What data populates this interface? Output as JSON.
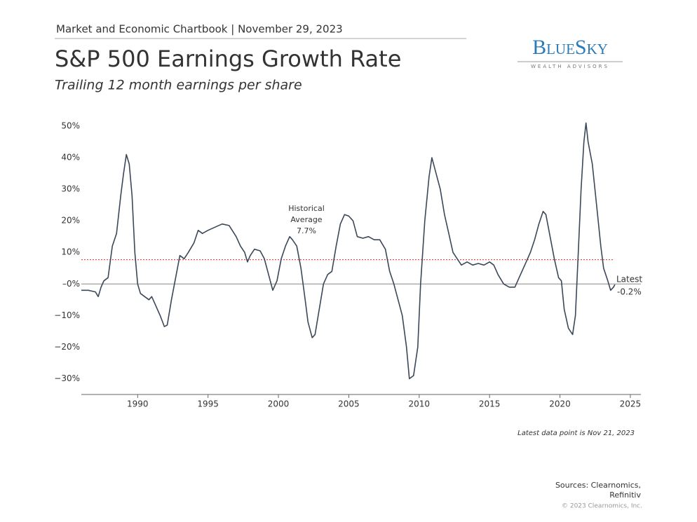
{
  "chart_data": {
    "type": "line",
    "header": "Market and Economic Chartbook | November 29, 2023",
    "title": "S&P 500 Earnings Growth Rate",
    "subtitle": "Trailing 12 month earnings per share",
    "logo": "BlueSky",
    "logo_tagline": "WEALTH ADVISORS",
    "note": "Latest data point is Nov 21, 2023",
    "source": [
      "Sources: Clearnomics,",
      "Refinitiv"
    ],
    "copyright": "© 2023 Clearnomics, Inc.",
    "color": "#3b4859",
    "xlim": [
      1986,
      2025.75
    ],
    "xticks": [
      1990,
      1995,
      2000,
      2005,
      2010,
      2015,
      2020,
      2025
    ],
    "ylim": [
      -35,
      52
    ],
    "yticks": [
      {
        "value": 50,
        "label": "50%"
      },
      {
        "value": 40,
        "label": "40%"
      },
      {
        "value": 30,
        "label": "30%"
      },
      {
        "value": 20,
        "label": "20%"
      },
      {
        "value": 10,
        "label": "10%"
      },
      {
        "value": 0,
        "label": "–0%"
      },
      {
        "value": -10,
        "label": "−10%"
      },
      {
        "value": -20,
        "label": "−20%"
      },
      {
        "value": -30,
        "label": "−30%"
      }
    ],
    "average": {
      "value": 7.7,
      "label": "7.7%",
      "text": [
        "Historical",
        "Average"
      ],
      "color": "#d9534f"
    },
    "latest": {
      "value": -0.2,
      "label": "-0.2%",
      "text": "Latest"
    },
    "x": [
      1986.0,
      1986.5,
      1987.0,
      1987.2,
      1987.4,
      1987.6,
      1987.9,
      1988.2,
      1988.5,
      1988.8,
      1989.0,
      1989.2,
      1989.4,
      1989.6,
      1989.8,
      1990.0,
      1990.2,
      1990.5,
      1990.8,
      1991.0,
      1991.3,
      1991.6,
      1991.9,
      1992.1,
      1992.4,
      1992.7,
      1993.0,
      1993.3,
      1993.6,
      1994.0,
      1994.3,
      1994.6,
      1995.0,
      1995.5,
      1996.0,
      1996.5,
      1997.0,
      1997.3,
      1997.6,
      1997.8,
      1998.0,
      1998.3,
      1998.7,
      1999.0,
      1999.3,
      1999.6,
      1999.9,
      2000.2,
      2000.5,
      2000.8,
      2001.0,
      2001.3,
      2001.6,
      2001.9,
      2002.1,
      2002.4,
      2002.6,
      2002.9,
      2003.2,
      2003.5,
      2003.8,
      2004.1,
      2004.4,
      2004.7,
      2005.0,
      2005.3,
      2005.6,
      2006.0,
      2006.4,
      2006.8,
      2007.2,
      2007.6,
      2007.9,
      2008.2,
      2008.5,
      2008.8,
      2009.1,
      2009.3,
      2009.6,
      2009.9,
      2010.1,
      2010.4,
      2010.7,
      2010.9,
      2011.2,
      2011.5,
      2011.8,
      2012.1,
      2012.4,
      2012.7,
      2013.0,
      2013.4,
      2013.8,
      2014.2,
      2014.6,
      2015.0,
      2015.3,
      2015.6,
      2016.0,
      2016.4,
      2016.8,
      2017.1,
      2017.5,
      2017.9,
      2018.2,
      2018.5,
      2018.8,
      2019.0,
      2019.3,
      2019.6,
      2019.9,
      2020.1,
      2020.3,
      2020.6,
      2020.9,
      2021.1,
      2021.3,
      2021.5,
      2021.7,
      2021.85,
      2022.0,
      2022.3,
      2022.6,
      2022.9,
      2023.1,
      2023.4,
      2023.6,
      2023.8,
      2023.9
    ],
    "values": [
      -2,
      -2,
      -2.5,
      -4,
      -1,
      1,
      2,
      12,
      16,
      28,
      35,
      41,
      38,
      28,
      10,
      0,
      -3,
      -4,
      -5,
      -4,
      -7,
      -10,
      -13.5,
      -13,
      -5,
      2,
      9,
      8,
      10,
      13,
      17,
      16,
      17,
      18,
      19,
      18.5,
      15,
      12,
      10,
      7,
      9,
      11,
      10.5,
      8,
      3,
      -2,
      1,
      8,
      12,
      15,
      14,
      12,
      5,
      -5,
      -12,
      -17,
      -16,
      -8,
      0,
      3,
      4,
      12,
      19,
      22,
      21.5,
      20,
      15,
      14.5,
      15,
      14,
      14,
      11,
      4,
      0,
      -5,
      -10,
      -20,
      -30,
      -29,
      -20,
      0,
      20,
      34,
      40,
      35,
      30,
      22,
      16,
      10,
      8,
      6,
      7,
      6,
      6.5,
      6,
      7,
      6,
      3,
      0,
      -1,
      -1,
      2,
      6,
      10,
      14,
      19,
      23,
      22,
      15,
      8,
      2,
      1,
      -8,
      -14,
      -16,
      -10,
      10,
      30,
      45,
      51,
      45,
      38,
      25,
      12,
      5,
      1,
      -2,
      -1,
      -0.2
    ]
  }
}
